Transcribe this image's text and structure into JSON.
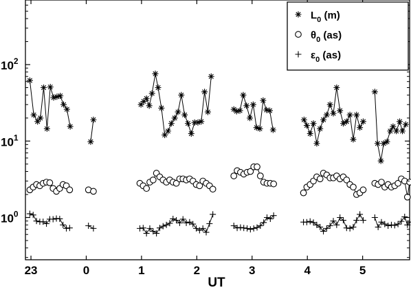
{
  "chart_data": {
    "type": "scatter",
    "title": "",
    "xlabel": "UT",
    "ylabel": "",
    "xlim": [
      -1.1,
      5.85
    ],
    "ylim": [
      0.28,
      700
    ],
    "yscale": "log",
    "grid": false,
    "legend_position": "top-right",
    "x_ticks": [
      {
        "value": -1,
        "label": "23"
      },
      {
        "value": 0,
        "label": "0"
      },
      {
        "value": 1,
        "label": "1"
      },
      {
        "value": 2,
        "label": "2"
      },
      {
        "value": 3,
        "label": "3"
      },
      {
        "value": 4,
        "label": "4"
      },
      {
        "value": 5,
        "label": "5"
      }
    ],
    "y_ticks": [
      {
        "value": 1,
        "base": "10",
        "exp": "0"
      },
      {
        "value": 10,
        "base": "10",
        "exp": "1"
      },
      {
        "value": 100,
        "base": "10",
        "exp": "2"
      }
    ],
    "series": [
      {
        "name": "L0 (m)",
        "legend": {
          "main": "L",
          "sub": "0",
          "rest": " (m)"
        },
        "marker": "asterisk",
        "segments": [
          [
            [
              -1.02,
              62
            ],
            [
              -0.95,
              22
            ],
            [
              -0.88,
              18
            ],
            [
              -0.83,
              20
            ],
            [
              -0.77,
              50
            ],
            [
              -0.71,
              14.5
            ],
            [
              -0.65,
              51
            ],
            [
              -0.59,
              37
            ],
            [
              -0.53,
              38
            ],
            [
              -0.47,
              39
            ],
            [
              -0.41,
              30
            ],
            [
              -0.35,
              26
            ],
            [
              -0.29,
              15.5
            ]
          ],
          [
            [
              0.08,
              9.8
            ],
            [
              0.13,
              19
            ]
          ],
          [
            [
              0.99,
              30
            ],
            [
              1.04,
              33
            ],
            [
              1.09,
              36
            ],
            [
              1.14,
              29
            ],
            [
              1.19,
              42
            ],
            [
              1.25,
              76
            ],
            [
              1.3,
              50
            ],
            [
              1.36,
              27
            ],
            [
              1.42,
              12
            ],
            [
              1.48,
              13.5
            ],
            [
              1.54,
              17
            ],
            [
              1.6,
              20
            ],
            [
              1.66,
              24
            ],
            [
              1.72,
              40
            ],
            [
              1.78,
              22
            ],
            [
              1.84,
              17
            ],
            [
              1.9,
              12.5
            ],
            [
              1.96,
              17.5
            ],
            [
              2.02,
              17.5
            ],
            [
              2.08,
              18
            ],
            [
              2.14,
              44
            ],
            [
              2.2,
              24
            ],
            [
              2.26,
              70
            ]
          ],
          [
            [
              2.67,
              26
            ],
            [
              2.72,
              24.5
            ],
            [
              2.78,
              25
            ],
            [
              2.84,
              40
            ],
            [
              2.9,
              29
            ],
            [
              2.96,
              20
            ],
            [
              3.02,
              30
            ],
            [
              3.08,
              15
            ],
            [
              3.14,
              14.5
            ],
            [
              3.2,
              34
            ],
            [
              3.26,
              25.5
            ],
            [
              3.32,
              25
            ],
            [
              3.38,
              14
            ]
          ],
          [
            [
              3.94,
              19
            ],
            [
              3.99,
              16
            ],
            [
              4.05,
              12.5
            ],
            [
              4.11,
              17
            ],
            [
              4.17,
              9.3
            ],
            [
              4.23,
              14.5
            ],
            [
              4.29,
              19
            ],
            [
              4.35,
              22
            ],
            [
              4.41,
              30
            ],
            [
              4.47,
              23
            ],
            [
              4.53,
              50
            ],
            [
              4.59,
              25
            ],
            [
              4.65,
              17
            ],
            [
              4.71,
              18
            ],
            [
              4.77,
              22
            ],
            [
              4.83,
              10.5
            ],
            [
              4.89,
              22
            ],
            [
              4.95,
              15
            ],
            [
              5.01,
              18
            ]
          ],
          [
            [
              5.22,
              44
            ],
            [
              5.27,
              9.3
            ],
            [
              5.33,
              5.5
            ],
            [
              5.38,
              9.3
            ],
            [
              5.44,
              9.8
            ],
            [
              5.5,
              13.5
            ],
            [
              5.55,
              15.5
            ],
            [
              5.61,
              13.5
            ],
            [
              5.67,
              18
            ],
            [
              5.72,
              13.5
            ],
            [
              5.78,
              16.5
            ]
          ]
        ]
      },
      {
        "name": "θ0 (as)",
        "legend": {
          "main": "θ",
          "sub": "0",
          "rest": " (as)"
        },
        "marker": "circle",
        "segments": [
          [
            [
              -1.02,
              2.3
            ],
            [
              -0.96,
              2.5
            ],
            [
              -0.9,
              2.7
            ],
            [
              -0.84,
              2.6
            ],
            [
              -0.78,
              2.8
            ],
            [
              -0.72,
              2.9
            ],
            [
              -0.66,
              2.85
            ],
            [
              -0.6,
              2.4
            ],
            [
              -0.54,
              2.2
            ],
            [
              -0.48,
              2.4
            ],
            [
              -0.42,
              2.7
            ],
            [
              -0.36,
              2.6
            ],
            [
              -0.3,
              2.3
            ]
          ],
          [
            [
              0.04,
              2.3
            ],
            [
              0.13,
              2.2
            ]
          ],
          [
            [
              0.97,
              2.8
            ],
            [
              1.03,
              2.6
            ],
            [
              1.09,
              2.4
            ],
            [
              1.15,
              2.9
            ],
            [
              1.21,
              3.1
            ],
            [
              1.27,
              3.8
            ],
            [
              1.33,
              3.4
            ],
            [
              1.39,
              3.1
            ],
            [
              1.45,
              2.9
            ],
            [
              1.51,
              3.1
            ],
            [
              1.57,
              2.9
            ],
            [
              1.63,
              2.8
            ],
            [
              1.69,
              3.2
            ],
            [
              1.75,
              3.2
            ],
            [
              1.81,
              3.1
            ],
            [
              1.87,
              3.2
            ],
            [
              1.93,
              3.0
            ],
            [
              1.99,
              2.7
            ],
            [
              2.05,
              2.6
            ],
            [
              2.11,
              3.0
            ],
            [
              2.17,
              2.8
            ],
            [
              2.23,
              2.6
            ],
            [
              2.29,
              2.35
            ]
          ],
          [
            [
              2.67,
              3.5
            ],
            [
              2.73,
              4.1
            ],
            [
              2.79,
              3.9
            ],
            [
              2.85,
              3.7
            ],
            [
              2.91,
              3.9
            ],
            [
              2.97,
              4.0
            ],
            [
              3.03,
              4.6
            ],
            [
              3.09,
              4.6
            ],
            [
              3.15,
              3.5
            ],
            [
              3.21,
              2.9
            ],
            [
              3.27,
              2.8
            ],
            [
              3.33,
              2.8
            ],
            [
              3.39,
              2.75
            ]
          ],
          [
            [
              3.93,
              2.1
            ],
            [
              3.99,
              2.5
            ],
            [
              4.05,
              2.7
            ],
            [
              4.11,
              3.0
            ],
            [
              4.17,
              3.4
            ],
            [
              4.23,
              3.2
            ],
            [
              4.29,
              3.8
            ],
            [
              4.35,
              3.6
            ],
            [
              4.41,
              3.3
            ],
            [
              4.47,
              3.3
            ],
            [
              4.53,
              3.5
            ],
            [
              4.59,
              3.2
            ],
            [
              4.65,
              3.4
            ],
            [
              4.71,
              3.1
            ],
            [
              4.77,
              2.7
            ],
            [
              4.83,
              2.5
            ],
            [
              4.89,
              2.0
            ],
            [
              4.95,
              2.1
            ],
            [
              5.01,
              2.3
            ]
          ],
          [
            [
              5.22,
              2.8
            ],
            [
              5.28,
              2.7
            ],
            [
              5.34,
              2.9
            ],
            [
              5.4,
              2.5
            ],
            [
              5.46,
              2.7
            ],
            [
              5.52,
              2.5
            ],
            [
              5.58,
              2.6
            ],
            [
              5.64,
              2.8
            ],
            [
              5.7,
              3.2
            ],
            [
              5.76,
              3.0
            ],
            [
              5.81,
              1.85
            ],
            [
              5.85,
              2.9
            ]
          ]
        ]
      },
      {
        "name": "ε0 (as)",
        "legend": {
          "main": "ε",
          "sub": "0",
          "rest": " (as)"
        },
        "marker": "plus",
        "segments": [
          [
            [
              -1.02,
              1.12
            ],
            [
              -0.96,
              1.08
            ],
            [
              -0.9,
              0.9
            ],
            [
              -0.84,
              0.88
            ],
            [
              -0.78,
              0.88
            ],
            [
              -0.72,
              0.83
            ],
            [
              -0.66,
              0.95
            ],
            [
              -0.6,
              0.95
            ],
            [
              -0.54,
              0.97
            ],
            [
              -0.48,
              0.96
            ],
            [
              -0.42,
              0.8
            ],
            [
              -0.36,
              0.72
            ],
            [
              -0.3,
              0.73
            ]
          ],
          [
            [
              0.04,
              0.78
            ],
            [
              0.13,
              0.72
            ]
          ],
          [
            [
              0.97,
              0.72
            ],
            [
              1.03,
              0.73
            ],
            [
              1.09,
              0.62
            ],
            [
              1.15,
              0.72
            ],
            [
              1.21,
              0.66
            ],
            [
              1.27,
              0.62
            ],
            [
              1.33,
              0.73
            ],
            [
              1.39,
              0.77
            ],
            [
              1.45,
              0.8
            ],
            [
              1.51,
              0.84
            ],
            [
              1.57,
              0.96
            ],
            [
              1.63,
              0.92
            ],
            [
              1.69,
              0.85
            ],
            [
              1.75,
              0.95
            ],
            [
              1.81,
              0.85
            ],
            [
              1.87,
              0.87
            ],
            [
              1.93,
              0.82
            ],
            [
              1.99,
              0.72
            ],
            [
              2.05,
              0.68
            ],
            [
              2.11,
              0.72
            ],
            [
              2.17,
              0.64
            ],
            [
              2.23,
              0.83
            ],
            [
              2.29,
              1.1
            ]
          ],
          [
            [
              2.67,
              0.78
            ],
            [
              2.73,
              0.73
            ],
            [
              2.79,
              0.74
            ],
            [
              2.85,
              0.73
            ],
            [
              2.91,
              0.72
            ],
            [
              2.97,
              0.7
            ],
            [
              3.03,
              0.72
            ],
            [
              3.09,
              0.74
            ],
            [
              3.15,
              0.78
            ],
            [
              3.21,
              0.86
            ],
            [
              3.27,
              1.0
            ],
            [
              3.33,
              0.96
            ],
            [
              3.39,
              1.06
            ]
          ],
          [
            [
              3.93,
              0.87
            ],
            [
              3.99,
              0.87
            ],
            [
              4.05,
              0.89
            ],
            [
              4.11,
              0.86
            ],
            [
              4.17,
              0.8
            ],
            [
              4.23,
              0.75
            ],
            [
              4.29,
              0.66
            ],
            [
              4.35,
              0.72
            ],
            [
              4.41,
              0.78
            ],
            [
              4.47,
              0.9
            ],
            [
              4.53,
              0.8
            ],
            [
              4.59,
              1.0
            ],
            [
              4.65,
              0.92
            ],
            [
              4.71,
              0.73
            ],
            [
              4.77,
              0.72
            ],
            [
              4.83,
              0.75
            ],
            [
              4.89,
              0.92
            ],
            [
              4.95,
              1.1
            ],
            [
              5.01,
              0.92
            ]
          ],
          [
            [
              5.22,
              1.0
            ],
            [
              5.28,
              0.75
            ],
            [
              5.34,
              0.87
            ],
            [
              5.4,
              0.82
            ],
            [
              5.46,
              0.78
            ],
            [
              5.52,
              0.8
            ],
            [
              5.58,
              0.79
            ],
            [
              5.64,
              0.82
            ],
            [
              5.7,
              0.89
            ],
            [
              5.76,
              1.02
            ],
            [
              5.81,
              0.8
            ],
            [
              5.85,
              0.87
            ]
          ]
        ]
      }
    ]
  }
}
